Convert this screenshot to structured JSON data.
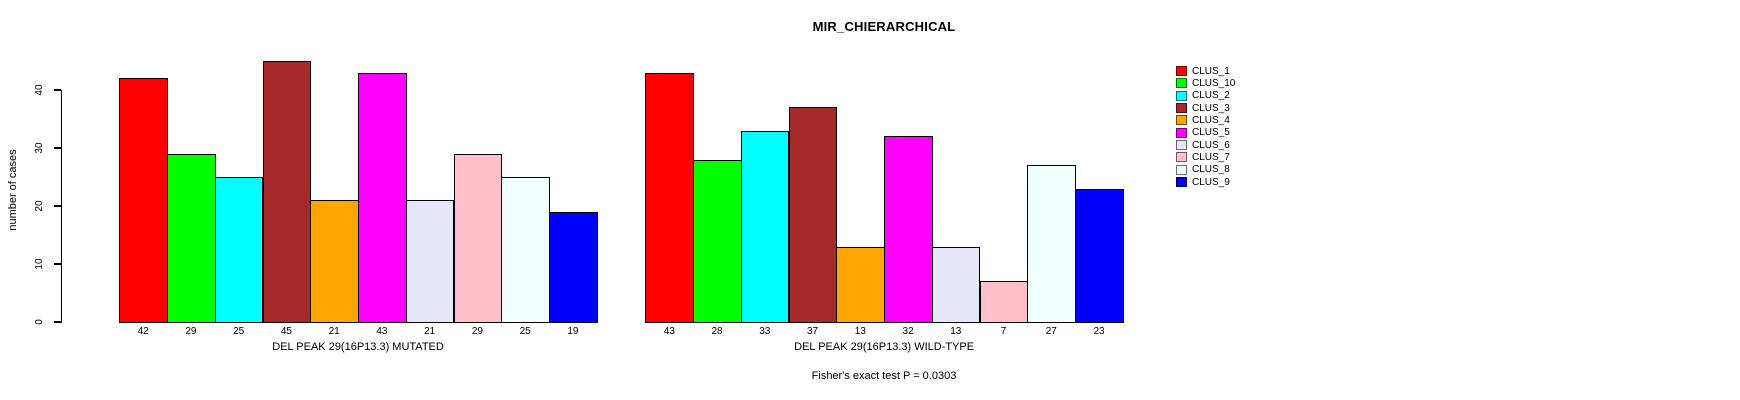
{
  "chart_data": {
    "type": "bar",
    "title": "MIR_CHIERARCHICAL",
    "ylabel": "number of cases",
    "xlabel": "",
    "ylim": [
      0,
      45
    ],
    "yticks": [
      0,
      10,
      20,
      30,
      40
    ],
    "grid": false,
    "legend_position": "right",
    "categories": [
      "CLUS_1",
      "CLUS_10",
      "CLUS_2",
      "CLUS_3",
      "CLUS_4",
      "CLUS_5",
      "CLUS_6",
      "CLUS_7",
      "CLUS_8",
      "CLUS_9"
    ],
    "colors": [
      "#FF0000",
      "#00FF00",
      "#00FFFF",
      "#A52A2A",
      "#FFA500",
      "#FF00FF",
      "#E6E6FA",
      "#FFC0CB",
      "#F0FFFF",
      "#0000FF"
    ],
    "groups": [
      {
        "label": "DEL PEAK 29(16P13.3) MUTATED",
        "values": [
          42,
          29,
          25,
          45,
          21,
          43,
          21,
          29,
          25,
          19
        ]
      },
      {
        "label": "DEL PEAK 29(16P13.3) WILD-TYPE",
        "values": [
          43,
          28,
          33,
          37,
          13,
          32,
          13,
          7,
          27,
          23
        ]
      }
    ],
    "annotation": "Fisher's exact test P = 0.0303"
  }
}
